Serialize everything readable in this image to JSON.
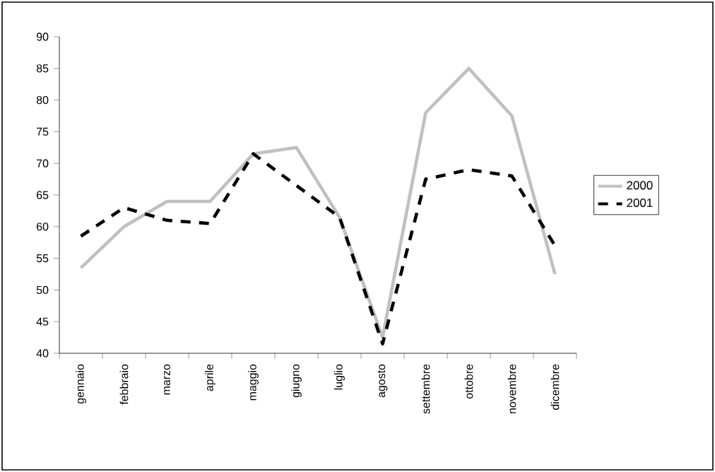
{
  "chart_data": {
    "type": "line",
    "categories": [
      "gennaio",
      "febbraio",
      "marzo",
      "aprile",
      "maggio",
      "giugno",
      "luglio",
      "agosto",
      "settembre",
      "ottobre",
      "novembre",
      "dicembre"
    ],
    "series": [
      {
        "name": "2000",
        "color": "#c0c0c0",
        "line_style": "solid",
        "values": [
          53.5,
          60,
          64,
          64,
          71.5,
          72.5,
          61.5,
          42.5,
          78,
          85,
          77.5,
          52.5
        ]
      },
      {
        "name": "2001",
        "color": "#000000",
        "line_style": "dashed",
        "values": [
          58.5,
          63,
          61,
          60.5,
          71.5,
          66.5,
          61.5,
          41.5,
          67.5,
          69,
          68,
          57
        ]
      }
    ],
    "ylim": [
      40,
      90
    ],
    "yticks": [
      40,
      45,
      50,
      55,
      60,
      65,
      70,
      75,
      80,
      85,
      90
    ],
    "grid": false,
    "legend": "right",
    "marker": "none"
  }
}
